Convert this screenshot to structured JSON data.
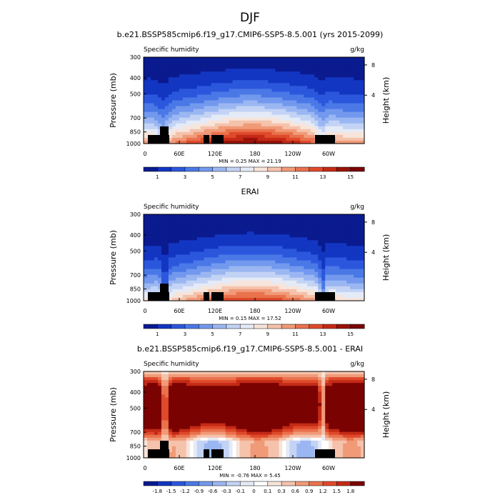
{
  "figure": {
    "title": "DJF"
  },
  "chart_data": [
    {
      "type": "heatmap",
      "kind": "pressure-longitude contour",
      "title": "b.e21.BSSP585cmip6.f19_g17.CMIP6-SSP5-8.5.001 (yrs 2015-2099)",
      "variable": "Specific humidity",
      "units": "g/kg",
      "xlabel": "",
      "ylabel": "Pressure (mb)",
      "y2label": "Height (km)",
      "x_ticks": [
        "0",
        "60E",
        "120E",
        "180",
        "120W",
        "60W"
      ],
      "y_ticks": [
        "300",
        "400",
        "500",
        "700",
        "850",
        "1000"
      ],
      "y2_ticks": [
        "8",
        "4"
      ],
      "stats": "MIN =  0.25  MAX = 21.19",
      "colorbar_labels": [
        "1",
        "3",
        "5",
        "7",
        "9",
        "11",
        "13",
        "15"
      ],
      "colorbar_colors": [
        "#0a1a8f",
        "#1336c2",
        "#2b57dd",
        "#4a78e6",
        "#7399ee",
        "#9bb7f2",
        "#c3d3f5",
        "#e4ebf7",
        "#f7e4da",
        "#f5c2ab",
        "#f09a78",
        "#e9724d",
        "#df4a2b",
        "#c42a16",
        "#9a1208",
        "#7a0302"
      ],
      "colorbar_levels": [
        0,
        1,
        2,
        3,
        4,
        5,
        6,
        7,
        8,
        9,
        10,
        11,
        12,
        13,
        14,
        15,
        16
      ]
    },
    {
      "type": "heatmap",
      "kind": "pressure-longitude contour",
      "title": "ERAI",
      "variable": "Specific humidity",
      "units": "g/kg",
      "xlabel": "",
      "ylabel": "Pressure (mb)",
      "y2label": "Height (km)",
      "x_ticks": [
        "0",
        "60E",
        "120E",
        "180",
        "120W",
        "60W"
      ],
      "y_ticks": [
        "300",
        "400",
        "500",
        "700",
        "850",
        "1000"
      ],
      "y2_ticks": [
        "8",
        "4"
      ],
      "stats": "MIN =  0.15  MAX = 17.52",
      "colorbar_labels": [
        "1",
        "3",
        "5",
        "7",
        "9",
        "11",
        "13",
        "15"
      ],
      "colorbar_colors": [
        "#0a1a8f",
        "#1336c2",
        "#2b57dd",
        "#4a78e6",
        "#7399ee",
        "#9bb7f2",
        "#c3d3f5",
        "#e4ebf7",
        "#f7e4da",
        "#f5c2ab",
        "#f09a78",
        "#e9724d",
        "#df4a2b",
        "#c42a16",
        "#9a1208",
        "#7a0302"
      ],
      "colorbar_levels": [
        0,
        1,
        2,
        3,
        4,
        5,
        6,
        7,
        8,
        9,
        10,
        11,
        12,
        13,
        14,
        15,
        16
      ]
    },
    {
      "type": "heatmap",
      "kind": "pressure-longitude contour difference",
      "title": "b.e21.BSSP585cmip6.f19_g17.CMIP6-SSP5-8.5.001 - ERAI",
      "variable": "Specific humidity",
      "units": "g/kg",
      "xlabel": "",
      "ylabel": "Pressure (mb)",
      "y2label": "Height (km)",
      "x_ticks": [
        "0",
        "60E",
        "120E",
        "180",
        "120W",
        "60W"
      ],
      "y_ticks": [
        "300",
        "400",
        "500",
        "700",
        "850",
        "1000"
      ],
      "y2_ticks": [
        "8",
        "4"
      ],
      "stats": "MIN = -0.76  MAX =  5.45",
      "colorbar_labels": [
        "-1.8",
        "-1.5",
        "-1.2",
        "-0.9",
        "-0.6",
        "-0.3",
        "-0.1",
        "0",
        "0.1",
        "0.3",
        "0.6",
        "0.9",
        "1.2",
        "1.5",
        "1.8"
      ],
      "colorbar_colors": [
        "#0a1a8f",
        "#1336c2",
        "#2b57dd",
        "#4a78e6",
        "#7399ee",
        "#9bb7f2",
        "#c3d3f5",
        "#e4ebf7",
        "#ffffff",
        "#f7e4da",
        "#f5c2ab",
        "#f09a78",
        "#e9724d",
        "#df4a2b",
        "#c42a16",
        "#7a0302"
      ],
      "colorbar_levels": [
        -2.1,
        -1.8,
        -1.5,
        -1.2,
        -0.9,
        -0.6,
        -0.3,
        -0.1,
        0,
        0.1,
        0.3,
        0.6,
        0.9,
        1.2,
        1.5,
        1.8,
        2.1
      ]
    }
  ]
}
